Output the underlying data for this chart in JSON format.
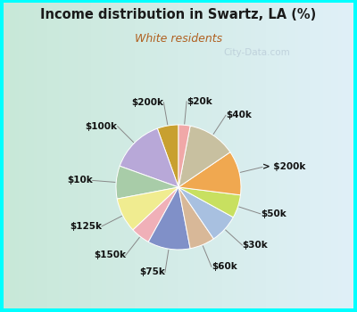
{
  "title": "Income distribution in Swartz, LA (%)",
  "subtitle": "White residents",
  "title_color": "#1a1a1a",
  "subtitle_color": "#b06020",
  "background_color": "#00ffff",
  "chart_bg_left": "#d0ede0",
  "chart_bg_right": "#e8f4f8",
  "watermark": "City-Data.com",
  "labels": [
    "$200k",
    "$100k",
    "$10k",
    "$125k",
    "$150k",
    "$75k",
    "$60k",
    "$30k",
    "$50k",
    "> $200k",
    "$40k",
    "$20k"
  ],
  "values": [
    5.5,
    14.0,
    8.5,
    9.0,
    5.0,
    11.0,
    6.5,
    7.5,
    6.0,
    11.5,
    12.5,
    3.0
  ],
  "colors": [
    "#c8a030",
    "#b8a8d8",
    "#a8cca8",
    "#f0ec90",
    "#f0b0b8",
    "#8090c8",
    "#d8b898",
    "#a8c0e0",
    "#c8e060",
    "#f0a850",
    "#c8c0a0",
    "#f0a8a8"
  ],
  "startangle": 90,
  "label_fontsize": 7.5,
  "pct_distance": 0.75
}
